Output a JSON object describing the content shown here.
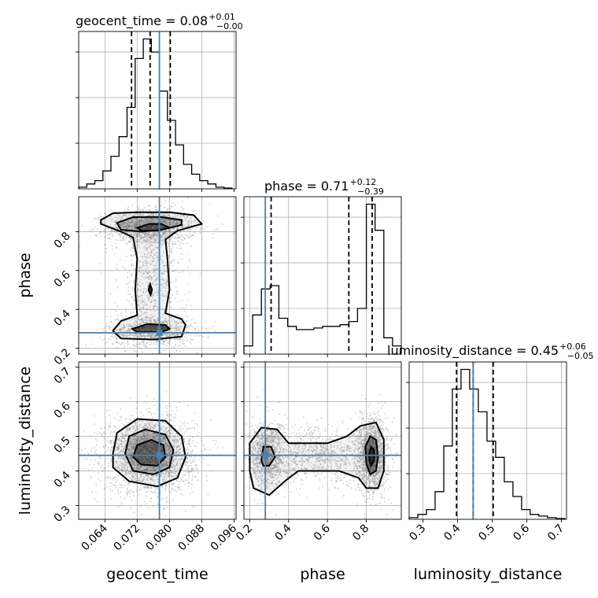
{
  "chart_data": {
    "type": "corner",
    "colors": {
      "histogram": "#000000",
      "truth": "#4682b4",
      "grid": "#b0b0b0",
      "samples": "#8c8c8c"
    },
    "grid": true,
    "parameters": [
      {
        "name": "geocent_time",
        "axis_label": "geocent_time",
        "range": [
          0.0575,
          0.0965
        ],
        "ticks": [
          {
            "value": 0.064,
            "label": "0.064"
          },
          {
            "value": 0.072,
            "label": "0.072"
          },
          {
            "value": 0.08,
            "label": "0.080"
          },
          {
            "value": 0.088,
            "label": "0.088"
          },
          {
            "value": 0.096,
            "label": "0.096"
          }
        ],
        "title": {
          "base": "geocent_time = 0.08",
          "plus": "+0.01",
          "minus": "−0.00"
        },
        "quantiles": [
          0.0706,
          0.0752,
          0.0802
        ],
        "truth": 0.0775,
        "hist_bin_edges": [
          0.0575,
          0.0595,
          0.0615,
          0.0635,
          0.0655,
          0.0675,
          0.0695,
          0.0715,
          0.0735,
          0.0755,
          0.0775,
          0.0795,
          0.0815,
          0.0835,
          0.0855,
          0.0875,
          0.0895,
          0.0915,
          0.0935,
          0.0955
        ],
        "hist_counts": [
          0.01,
          0.03,
          0.05,
          0.11,
          0.2,
          0.32,
          0.5,
          0.8,
          0.92,
          0.84,
          0.6,
          0.42,
          0.27,
          0.15,
          0.09,
          0.05,
          0.03,
          0.01,
          0.005
        ]
      },
      {
        "name": "phase",
        "axis_label": "phase",
        "range": [
          0.17,
          0.98
        ],
        "ticks": [
          {
            "value": 0.2,
            "label": "0.2"
          },
          {
            "value": 0.4,
            "label": "0.4"
          },
          {
            "value": 0.6,
            "label": "0.6"
          },
          {
            "value": 0.8,
            "label": "0.8"
          }
        ],
        "title": {
          "base": "phase = 0.71",
          "plus": "+0.12",
          "minus": "−0.39"
        },
        "quantiles": [
          0.31,
          0.71,
          0.83
        ],
        "truth": 0.28,
        "hist_bin_edges": [
          0.17,
          0.215,
          0.26,
          0.305,
          0.35,
          0.395,
          0.44,
          0.485,
          0.53,
          0.575,
          0.62,
          0.665,
          0.71,
          0.755,
          0.8,
          0.845,
          0.89,
          0.935,
          0.98
        ],
        "hist_counts": [
          0.05,
          0.24,
          0.4,
          0.42,
          0.22,
          0.17,
          0.15,
          0.15,
          0.16,
          0.17,
          0.17,
          0.18,
          0.2,
          0.28,
          0.92,
          0.76,
          0.1,
          0.05
        ]
      },
      {
        "name": "luminosity_distance",
        "axis_label": "luminosity_distance",
        "range": [
          0.26,
          0.715
        ],
        "ticks": [
          {
            "value": 0.3,
            "label": "0.3"
          },
          {
            "value": 0.4,
            "label": "0.4"
          },
          {
            "value": 0.5,
            "label": "0.5"
          },
          {
            "value": 0.6,
            "label": "0.6"
          },
          {
            "value": 0.7,
            "label": "0.7"
          }
        ],
        "title": {
          "base": "luminosity_distance = 0.45",
          "plus": "+0.06",
          "minus": "−0.05"
        },
        "quantiles": [
          0.397,
          0.445,
          0.503
        ],
        "truth": 0.445,
        "hist_bin_edges": [
          0.26,
          0.285,
          0.31,
          0.335,
          0.36,
          0.385,
          0.41,
          0.435,
          0.46,
          0.485,
          0.51,
          0.535,
          0.56,
          0.585,
          0.61,
          0.635,
          0.66,
          0.685,
          0.71
        ],
        "hist_counts": [
          0.01,
          0.03,
          0.06,
          0.17,
          0.45,
          0.8,
          0.92,
          0.8,
          0.66,
          0.48,
          0.38,
          0.23,
          0.14,
          0.06,
          0.03,
          0.02,
          0.01,
          0.005
        ]
      }
    ],
    "pairs": [
      {
        "x": "geocent_time",
        "y": "phase",
        "truth": [
          0.0775,
          0.28
        ],
        "sample_cloud": [
          {
            "cx": 0.0755,
            "cy": 0.82,
            "sx": 0.0055,
            "sy": 0.045,
            "n": 1400
          },
          {
            "cx": 0.0755,
            "cy": 0.29,
            "sx": 0.0055,
            "sy": 0.04,
            "n": 900
          },
          {
            "cx": 0.0755,
            "cy": 0.55,
            "sx": 0.004,
            "sy": 0.18,
            "n": 700
          }
        ],
        "contours": [
          [
            [
              0.063,
              0.86
            ],
            [
              0.066,
              0.895
            ],
            [
              0.072,
              0.9
            ],
            [
              0.08,
              0.9
            ],
            [
              0.086,
              0.885
            ],
            [
              0.088,
              0.84
            ],
            [
              0.082,
              0.805
            ],
            [
              0.079,
              0.76
            ],
            [
              0.0795,
              0.66
            ],
            [
              0.08,
              0.5
            ],
            [
              0.079,
              0.38
            ],
            [
              0.083,
              0.35
            ],
            [
              0.084,
              0.32
            ],
            [
              0.083,
              0.26
            ],
            [
              0.076,
              0.245
            ],
            [
              0.068,
              0.25
            ],
            [
              0.066,
              0.29
            ],
            [
              0.068,
              0.34
            ],
            [
              0.072,
              0.37
            ],
            [
              0.0715,
              0.5
            ],
            [
              0.072,
              0.66
            ],
            [
              0.071,
              0.77
            ],
            [
              0.068,
              0.8
            ],
            [
              0.063,
              0.84
            ]
          ],
          [
            [
              0.067,
              0.845
            ],
            [
              0.071,
              0.875
            ],
            [
              0.078,
              0.875
            ],
            [
              0.083,
              0.86
            ],
            [
              0.083,
              0.835
            ],
            [
              0.078,
              0.81
            ],
            [
              0.073,
              0.8
            ],
            [
              0.068,
              0.81
            ]
          ],
          [
            [
              0.072,
              0.82
            ],
            [
              0.075,
              0.84
            ],
            [
              0.078,
              0.84
            ],
            [
              0.08,
              0.82
            ],
            [
              0.077,
              0.805
            ],
            [
              0.073,
              0.806
            ]
          ],
          [
            [
              0.0708,
              0.3
            ],
            [
              0.0745,
              0.325
            ],
            [
              0.079,
              0.32
            ],
            [
              0.08,
              0.3
            ],
            [
              0.078,
              0.283
            ],
            [
              0.072,
              0.283
            ]
          ],
          [
            [
              0.0748,
              0.5
            ],
            [
              0.0752,
              0.53
            ],
            [
              0.0757,
              0.5
            ],
            [
              0.0753,
              0.475
            ]
          ]
        ]
      },
      {
        "x": "geocent_time",
        "y": "luminosity_distance",
        "truth": [
          0.0775,
          0.445
        ],
        "sample_cloud": [
          {
            "cx": 0.0752,
            "cy": 0.447,
            "sx": 0.0055,
            "sy": 0.055,
            "n": 2400
          }
        ],
        "contours": [
          [
            [
              0.066,
              0.45
            ],
            [
              0.067,
              0.51
            ],
            [
              0.072,
              0.55
            ],
            [
              0.079,
              0.545
            ],
            [
              0.083,
              0.5
            ],
            [
              0.084,
              0.44
            ],
            [
              0.082,
              0.38
            ],
            [
              0.077,
              0.355
            ],
            [
              0.07,
              0.37
            ],
            [
              0.066,
              0.41
            ]
          ],
          [
            [
              0.069,
              0.45
            ],
            [
              0.07,
              0.5
            ],
            [
              0.074,
              0.52
            ],
            [
              0.079,
              0.505
            ],
            [
              0.081,
              0.46
            ],
            [
              0.08,
              0.41
            ],
            [
              0.076,
              0.39
            ],
            [
              0.071,
              0.4
            ]
          ],
          [
            [
              0.071,
              0.44
            ],
            [
              0.072,
              0.475
            ],
            [
              0.0755,
              0.49
            ],
            [
              0.0785,
              0.475
            ],
            [
              0.079,
              0.44
            ],
            [
              0.077,
              0.415
            ],
            [
              0.073,
              0.418
            ]
          ]
        ]
      },
      {
        "x": "phase",
        "y": "luminosity_distance",
        "truth": [
          0.28,
          0.445
        ],
        "sample_cloud": [
          {
            "cx": 0.29,
            "cy": 0.445,
            "sx": 0.045,
            "sy": 0.05,
            "n": 1000
          },
          {
            "cx": 0.83,
            "cy": 0.445,
            "sx": 0.04,
            "sy": 0.055,
            "n": 1400
          },
          {
            "cx": 0.55,
            "cy": 0.445,
            "sx": 0.17,
            "sy": 0.04,
            "n": 900
          }
        ],
        "contours": [
          [
            [
              0.2,
              0.48
            ],
            [
              0.26,
              0.525
            ],
            [
              0.34,
              0.52
            ],
            [
              0.4,
              0.48
            ],
            [
              0.5,
              0.48
            ],
            [
              0.6,
              0.48
            ],
            [
              0.7,
              0.5
            ],
            [
              0.77,
              0.53
            ],
            [
              0.85,
              0.54
            ],
            [
              0.89,
              0.49
            ],
            [
              0.89,
              0.4
            ],
            [
              0.86,
              0.35
            ],
            [
              0.8,
              0.35
            ],
            [
              0.76,
              0.38
            ],
            [
              0.66,
              0.4
            ],
            [
              0.55,
              0.4
            ],
            [
              0.45,
              0.4
            ],
            [
              0.38,
              0.37
            ],
            [
              0.3,
              0.33
            ],
            [
              0.22,
              0.35
            ],
            [
              0.2,
              0.4
            ]
          ],
          [
            [
              0.26,
              0.43
            ],
            [
              0.27,
              0.47
            ],
            [
              0.31,
              0.47
            ],
            [
              0.33,
              0.44
            ],
            [
              0.3,
              0.415
            ],
            [
              0.27,
              0.415
            ]
          ],
          [
            [
              0.795,
              0.47
            ],
            [
              0.82,
              0.5
            ],
            [
              0.85,
              0.49
            ],
            [
              0.86,
              0.44
            ],
            [
              0.85,
              0.4
            ],
            [
              0.82,
              0.39
            ],
            [
              0.8,
              0.42
            ]
          ],
          [
            [
              0.815,
              0.45
            ],
            [
              0.825,
              0.47
            ],
            [
              0.84,
              0.46
            ],
            [
              0.84,
              0.43
            ],
            [
              0.825,
              0.415
            ],
            [
              0.815,
              0.43
            ]
          ]
        ]
      }
    ]
  }
}
